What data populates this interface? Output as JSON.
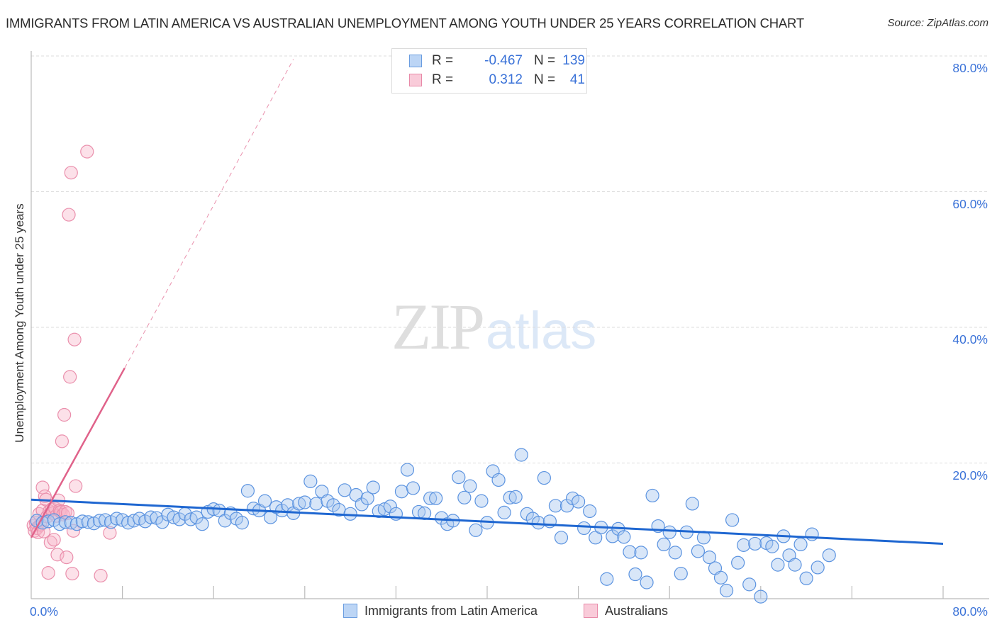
{
  "header": {
    "title": "IMMIGRANTS FROM LATIN AMERICA VS AUSTRALIAN UNEMPLOYMENT AMONG YOUTH UNDER 25 YEARS CORRELATION CHART",
    "source": "Source: ZipAtlas.com"
  },
  "watermark": {
    "zip": "ZIP",
    "atlas": "atlas"
  },
  "axes": {
    "ylabel": "Unemployment Among Youth under 25 years",
    "yticks": [
      "80.0%",
      "60.0%",
      "40.0%",
      "20.0%"
    ],
    "xtick_left": "0.0%",
    "xtick_right": "80.0%"
  },
  "legend": {
    "rows": [
      {
        "r_label": "R =",
        "r_value": "-0.467",
        "n_label": "N =",
        "n_value": "139",
        "color": "#a9c8f0",
        "border": "#6a9de0"
      },
      {
        "r_label": "R =",
        "r_value": "0.312",
        "n_label": "N =",
        "n_value": "41",
        "color": "#f7c3d3",
        "border": "#e88aa8"
      }
    ]
  },
  "bottom_legend": [
    {
      "label": "Immigrants from Latin America",
      "color": "#a9c8f0",
      "border": "#6a9de0"
    },
    {
      "label": "Australians",
      "color": "#f7c3d3",
      "border": "#e88aa8"
    }
  ],
  "colors": {
    "blue_fill": "rgba(169,200,240,0.45)",
    "blue_stroke": "#5b93e0",
    "blue_line": "#1f67d1",
    "pink_fill": "rgba(247,180,200,0.40)",
    "pink_stroke": "#ea8fac",
    "pink_line": "#e0628a",
    "grid": "#dddddd",
    "axis": "#bbbbbb",
    "tick_text": "#3a72d8"
  },
  "chart_data": {
    "type": "scatter",
    "title": "Immigrants from Latin America vs Australian Unemployment Among Youth under 25 years Correlation Chart",
    "xlabel": "Immigrants from Latin America",
    "ylabel": "Unemployment Among Youth under 25 years",
    "xlim": [
      0,
      80
    ],
    "ylim": [
      0,
      80
    ],
    "x_ticks": [
      0,
      80
    ],
    "y_ticks": [
      20,
      40,
      60,
      80
    ],
    "grid": true,
    "legend_position": "top-center",
    "series": [
      {
        "name": "Immigrants from Latin America",
        "R": -0.467,
        "N": 139,
        "trend": {
          "x": [
            0,
            80
          ],
          "y": [
            14.6,
            8.1
          ],
          "style": "solid"
        },
        "points": [
          [
            0.5,
            11.5
          ],
          [
            1.0,
            11.2
          ],
          [
            1.5,
            11.4
          ],
          [
            2.0,
            11.6
          ],
          [
            2.5,
            11.0
          ],
          [
            3.0,
            11.3
          ],
          [
            3.5,
            11.2
          ],
          [
            4.0,
            11.0
          ],
          [
            4.5,
            11.4
          ],
          [
            5.0,
            11.3
          ],
          [
            5.5,
            11.1
          ],
          [
            6.0,
            11.5
          ],
          [
            6.5,
            11.6
          ],
          [
            7.0,
            11.3
          ],
          [
            7.5,
            11.8
          ],
          [
            8.0,
            11.6
          ],
          [
            8.5,
            11.2
          ],
          [
            9.0,
            11.5
          ],
          [
            9.5,
            11.8
          ],
          [
            10.0,
            11.4
          ],
          [
            10.5,
            12.0
          ],
          [
            11.0,
            11.9
          ],
          [
            11.5,
            11.3
          ],
          [
            12.0,
            12.4
          ],
          [
            12.5,
            12.0
          ],
          [
            13.0,
            11.7
          ],
          [
            13.5,
            12.5
          ],
          [
            14.0,
            11.7
          ],
          [
            14.5,
            12.0
          ],
          [
            15.0,
            11.0
          ],
          [
            15.5,
            12.8
          ],
          [
            16.0,
            13.2
          ],
          [
            16.5,
            13.0
          ],
          [
            17.0,
            11.5
          ],
          [
            17.5,
            12.6
          ],
          [
            18.0,
            11.8
          ],
          [
            18.5,
            11.2
          ],
          [
            19.0,
            15.9
          ],
          [
            19.5,
            13.3
          ],
          [
            20.0,
            13.0
          ],
          [
            20.5,
            14.4
          ],
          [
            21.0,
            12.0
          ],
          [
            21.5,
            13.5
          ],
          [
            22.0,
            13.0
          ],
          [
            22.5,
            13.8
          ],
          [
            23.0,
            12.6
          ],
          [
            23.5,
            14.0
          ],
          [
            24.0,
            14.2
          ],
          [
            24.5,
            17.3
          ],
          [
            25.0,
            14.0
          ],
          [
            25.5,
            15.8
          ],
          [
            26.0,
            14.4
          ],
          [
            26.5,
            13.8
          ],
          [
            27.0,
            13.1
          ],
          [
            27.5,
            16.0
          ],
          [
            28.0,
            12.5
          ],
          [
            28.5,
            15.3
          ],
          [
            29.0,
            13.9
          ],
          [
            29.5,
            14.8
          ],
          [
            30.0,
            16.4
          ],
          [
            30.5,
            12.9
          ],
          [
            31.0,
            13.2
          ],
          [
            31.5,
            13.6
          ],
          [
            32.0,
            12.5
          ],
          [
            32.5,
            15.8
          ],
          [
            33.0,
            19.0
          ],
          [
            33.5,
            16.3
          ],
          [
            34.0,
            12.8
          ],
          [
            34.5,
            12.6
          ],
          [
            35.0,
            14.8
          ],
          [
            35.5,
            14.8
          ],
          [
            36.0,
            11.9
          ],
          [
            36.5,
            11.0
          ],
          [
            37.0,
            11.5
          ],
          [
            37.5,
            17.9
          ],
          [
            38.0,
            14.9
          ],
          [
            38.5,
            16.6
          ],
          [
            39.0,
            10.1
          ],
          [
            39.5,
            14.4
          ],
          [
            40.0,
            11.2
          ],
          [
            40.5,
            18.8
          ],
          [
            41.0,
            17.5
          ],
          [
            41.5,
            12.7
          ],
          [
            42.0,
            14.9
          ],
          [
            42.5,
            15.0
          ],
          [
            43.0,
            21.2
          ],
          [
            43.5,
            12.5
          ],
          [
            44.0,
            11.8
          ],
          [
            44.5,
            11.2
          ],
          [
            45.0,
            17.8
          ],
          [
            45.5,
            11.4
          ],
          [
            46.0,
            13.7
          ],
          [
            46.5,
            9.0
          ],
          [
            47.0,
            13.7
          ],
          [
            47.5,
            14.8
          ],
          [
            48.0,
            14.3
          ],
          [
            48.5,
            10.4
          ],
          [
            49.0,
            12.9
          ],
          [
            49.5,
            9.0
          ],
          [
            50.0,
            10.5
          ],
          [
            50.5,
            2.9
          ],
          [
            51.0,
            9.2
          ],
          [
            51.5,
            10.3
          ],
          [
            52.0,
            9.1
          ],
          [
            52.5,
            6.9
          ],
          [
            53.0,
            3.6
          ],
          [
            53.5,
            6.8
          ],
          [
            54.0,
            2.4
          ],
          [
            54.5,
            15.2
          ],
          [
            55.0,
            10.7
          ],
          [
            55.5,
            8.0
          ],
          [
            56.0,
            9.8
          ],
          [
            56.5,
            6.8
          ],
          [
            57.0,
            3.7
          ],
          [
            57.5,
            9.8
          ],
          [
            58.0,
            14.0
          ],
          [
            58.5,
            7.0
          ],
          [
            59.0,
            9.0
          ],
          [
            59.5,
            6.1
          ],
          [
            60.0,
            4.5
          ],
          [
            60.5,
            3.1
          ],
          [
            61.0,
            1.2
          ],
          [
            61.5,
            11.6
          ],
          [
            62.0,
            5.3
          ],
          [
            62.5,
            7.9
          ],
          [
            63.0,
            2.1
          ],
          [
            63.5,
            8.1
          ],
          [
            64.0,
            0.3
          ],
          [
            64.5,
            8.2
          ],
          [
            65.0,
            7.7
          ],
          [
            65.5,
            5.0
          ],
          [
            66.0,
            9.2
          ],
          [
            66.5,
            6.4
          ],
          [
            67.0,
            5.0
          ],
          [
            67.5,
            8.0
          ],
          [
            68.0,
            3.0
          ],
          [
            68.5,
            9.5
          ],
          [
            69.0,
            4.6
          ],
          [
            70.0,
            6.4
          ]
        ]
      },
      {
        "name": "Australians",
        "R": 0.312,
        "N": 41,
        "trend": {
          "x": [
            0,
            8.2
          ],
          "y": [
            9.0,
            34.0
          ],
          "style": "solid",
          "extension": {
            "x": [
              8.2,
              23.0
            ],
            "y": [
              34.0,
              79.5
            ],
            "style": "dashed"
          }
        },
        "points": [
          [
            0.2,
            10.8
          ],
          [
            0.3,
            10.0
          ],
          [
            0.4,
            11.2
          ],
          [
            0.5,
            10.4
          ],
          [
            0.6,
            9.8
          ],
          [
            0.7,
            12.5
          ],
          [
            0.8,
            10.9
          ],
          [
            1.0,
            13.0
          ],
          [
            1.0,
            16.4
          ],
          [
            1.1,
            9.9
          ],
          [
            1.2,
            15.1
          ],
          [
            1.3,
            14.6
          ],
          [
            1.4,
            12.1
          ],
          [
            1.5,
            3.8
          ],
          [
            1.6,
            12.9
          ],
          [
            1.7,
            8.3
          ],
          [
            1.8,
            13.2
          ],
          [
            1.9,
            12.6
          ],
          [
            2.0,
            8.7
          ],
          [
            2.1,
            13.3
          ],
          [
            2.2,
            12.2
          ],
          [
            2.3,
            6.5
          ],
          [
            2.4,
            14.5
          ],
          [
            2.5,
            13.0
          ],
          [
            2.6,
            12.8
          ],
          [
            2.7,
            23.2
          ],
          [
            2.8,
            12.4
          ],
          [
            2.9,
            27.1
          ],
          [
            3.0,
            12.8
          ],
          [
            3.1,
            6.1
          ],
          [
            3.2,
            12.6
          ],
          [
            3.3,
            56.6
          ],
          [
            3.4,
            32.7
          ],
          [
            3.5,
            62.8
          ],
          [
            3.6,
            3.7
          ],
          [
            3.7,
            10.0
          ],
          [
            3.8,
            38.2
          ],
          [
            3.9,
            16.6
          ],
          [
            4.9,
            65.9
          ],
          [
            6.1,
            3.4
          ],
          [
            6.9,
            9.7
          ]
        ]
      }
    ]
  }
}
